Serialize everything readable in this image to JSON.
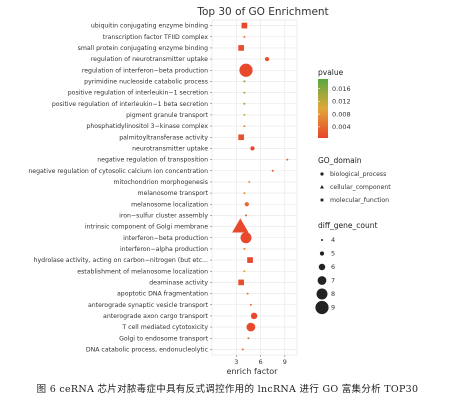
{
  "chart_data": {
    "type": "scatter",
    "title": "Top 30 of GO Enrichment",
    "xlabel": "enrich factor",
    "xlim": [
      0,
      10.5
    ],
    "xticks": [
      3,
      6,
      9
    ],
    "grid": true,
    "legend_position": "right",
    "categories": [
      "ubiquitin conjugating enzyme binding",
      "transcription factor TFIID complex",
      "small protein conjugating enzyme binding",
      "regulation of neurotransmitter uptake",
      "regulation of interferon−beta production",
      "pyrimidine nucleoside catabolic process",
      "positive regulation of interleukin−1 secretion",
      "positive regulation of interleukin−1 beta secretion",
      "pigment granule transport",
      "phosphatidylinositol 3−kinase complex",
      "palmitoyltransferase activity",
      "neurotransmitter uptake",
      "negative regulation of transposition",
      "negative regulation of cytosolic calcium ion concentration",
      "mitochondrion morphogenesis",
      "melanosome transport",
      "melanosome localization",
      "iron−sulfur cluster assembly",
      "intrinsic component of Golgi membrane",
      "interferon−beta production",
      "interferon−alpha production",
      "hydrolase activity, acting on carbon−nitrogen (but etc...",
      "establishment of melanosome localization",
      "deaminase activity",
      "apoptotic DNA fragmentation",
      "anterograde synaptic vesicle transport",
      "anterograde axon cargo transport",
      "T cell mediated cytotoxicity",
      "Golgi to endosome transport",
      "DNA catabolic process, endonucleolytic"
    ],
    "points": [
      {
        "x": 4.0,
        "count": 6,
        "pvalue": 0.001,
        "domain": "molecular_function"
      },
      {
        "x": 4.0,
        "count": 4,
        "pvalue": 0.003,
        "domain": "cellular_component"
      },
      {
        "x": 3.6,
        "count": 6,
        "pvalue": 0.0015,
        "domain": "molecular_function"
      },
      {
        "x": 6.8,
        "count": 5,
        "pvalue": 0.002,
        "domain": "biological_process"
      },
      {
        "x": 4.2,
        "count": 9,
        "pvalue": 0.001,
        "domain": "biological_process"
      },
      {
        "x": 4.0,
        "count": 4,
        "pvalue": 0.017,
        "domain": "biological_process"
      },
      {
        "x": 4.0,
        "count": 4,
        "pvalue": 0.014,
        "domain": "biological_process"
      },
      {
        "x": 4.0,
        "count": 4,
        "pvalue": 0.015,
        "domain": "biological_process"
      },
      {
        "x": 4.0,
        "count": 4,
        "pvalue": 0.011,
        "domain": "biological_process"
      },
      {
        "x": 4.0,
        "count": 4,
        "pvalue": 0.006,
        "domain": "cellular_component"
      },
      {
        "x": 3.6,
        "count": 6,
        "pvalue": 0.002,
        "domain": "molecular_function"
      },
      {
        "x": 5.0,
        "count": 5,
        "pvalue": 0.001,
        "domain": "biological_process"
      },
      {
        "x": 9.3,
        "count": 4,
        "pvalue": 0.004,
        "domain": "biological_process"
      },
      {
        "x": 7.5,
        "count": 4,
        "pvalue": 0.003,
        "domain": "biological_process"
      },
      {
        "x": 4.6,
        "count": 4,
        "pvalue": 0.008,
        "domain": "biological_process"
      },
      {
        "x": 4.0,
        "count": 4,
        "pvalue": 0.008,
        "domain": "biological_process"
      },
      {
        "x": 4.3,
        "count": 5,
        "pvalue": 0.004,
        "domain": "biological_process"
      },
      {
        "x": 4.2,
        "count": 4,
        "pvalue": 0.003,
        "domain": "biological_process"
      },
      {
        "x": 3.5,
        "count": 9,
        "pvalue": 0.001,
        "domain": "cellular_component"
      },
      {
        "x": 4.2,
        "count": 8,
        "pvalue": 0.001,
        "domain": "biological_process"
      },
      {
        "x": 4.0,
        "count": 4,
        "pvalue": 0.006,
        "domain": "biological_process"
      },
      {
        "x": 4.7,
        "count": 6,
        "pvalue": 0.001,
        "domain": "molecular_function"
      },
      {
        "x": 4.0,
        "count": 4,
        "pvalue": 0.009,
        "domain": "biological_process"
      },
      {
        "x": 3.6,
        "count": 6,
        "pvalue": 0.0015,
        "domain": "molecular_function"
      },
      {
        "x": 4.4,
        "count": 4,
        "pvalue": 0.006,
        "domain": "biological_process"
      },
      {
        "x": 4.8,
        "count": 4,
        "pvalue": 0.004,
        "domain": "biological_process"
      },
      {
        "x": 5.2,
        "count": 6,
        "pvalue": 0.001,
        "domain": "biological_process"
      },
      {
        "x": 4.8,
        "count": 7,
        "pvalue": 0.001,
        "domain": "biological_process"
      },
      {
        "x": 4.5,
        "count": 4,
        "pvalue": 0.006,
        "domain": "biological_process"
      },
      {
        "x": 3.8,
        "count": 4,
        "pvalue": 0.005,
        "domain": "biological_process"
      }
    ],
    "legend": {
      "pvalue": {
        "title": "pvalue",
        "ticks": [
          0.016,
          0.012,
          0.008,
          0.004
        ],
        "range": [
          0.0005,
          0.019
        ],
        "colors": [
          "#5aa840",
          "#e0a83a",
          "#e8432a"
        ]
      },
      "domain": {
        "title": "GO_domain",
        "items": [
          "biological_process",
          "cellular_component",
          "molecular_function"
        ]
      },
      "count": {
        "title": "diff_gene_count",
        "items": [
          4,
          5,
          6,
          7,
          8,
          9
        ]
      }
    }
  },
  "caption": "图 6   ceRNA 芯片对脓毒症中具有反式调控作用的 lncRNA 进行 GO 富集分析 TOP30"
}
